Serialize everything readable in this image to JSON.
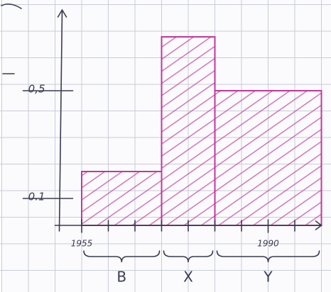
{
  "chart_data": {
    "type": "histogram",
    "bins": [
      1955,
      1970,
      1980,
      2000
    ],
    "values": [
      0.2,
      0.7,
      0.5
    ],
    "color": "#c2379a",
    "group_labels": [
      "B",
      "X",
      "Y"
    ],
    "xlim": [
      1950,
      2000
    ],
    "ylim": [
      0,
      0.8
    ],
    "xticks": [
      1955,
      1990
    ],
    "xminorticks": [
      1960,
      1965,
      1970,
      1975,
      1980,
      1985,
      1995
    ],
    "yticks": [
      0.1,
      {
        "value": 0.5,
        "label": "0,5"
      }
    ]
  }
}
